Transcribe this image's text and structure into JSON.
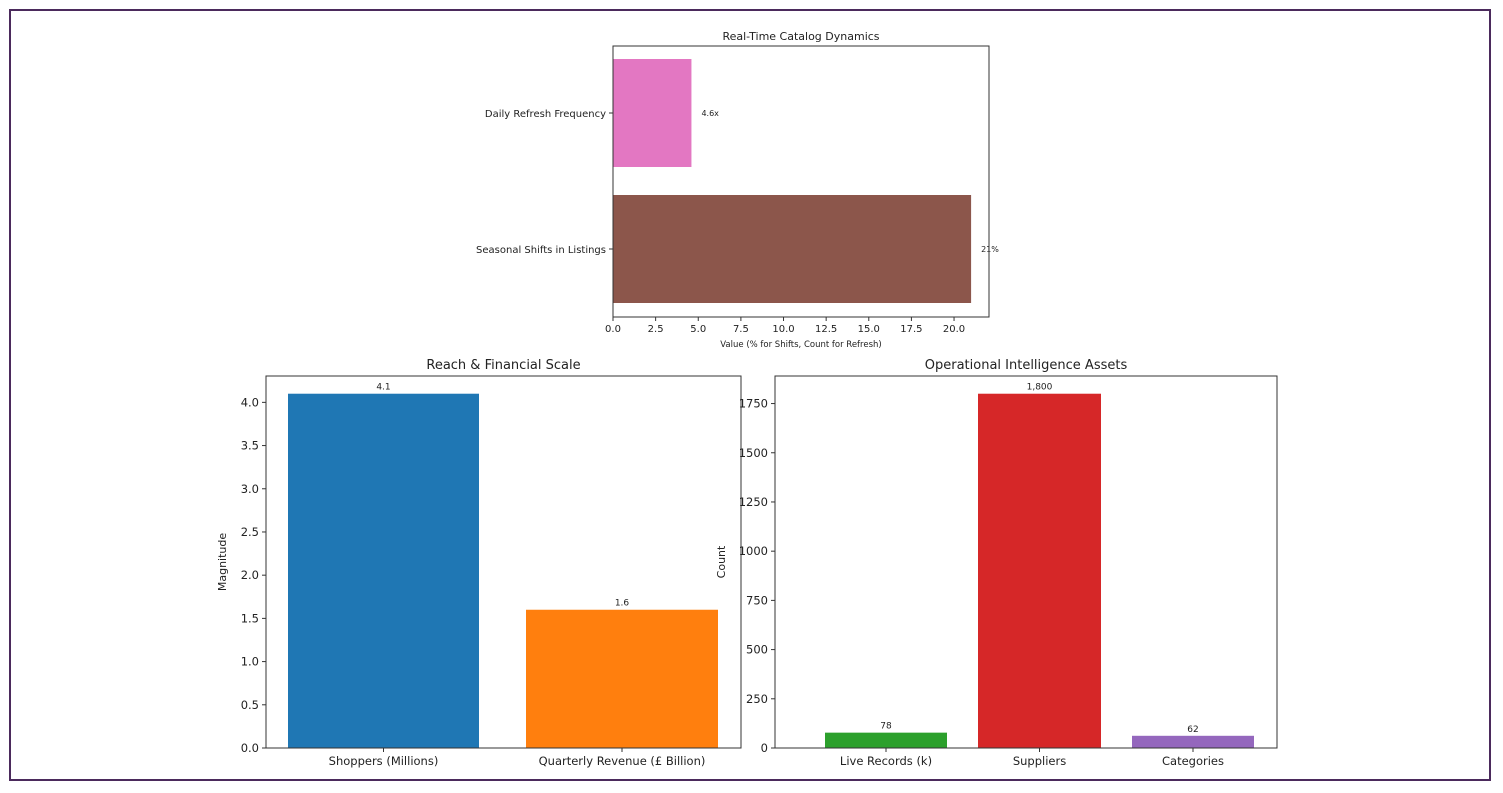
{
  "frame_color": "#4b2a5c",
  "chart_data": [
    {
      "type": "bar",
      "orientation": "horizontal",
      "title": "Real-Time Catalog Dynamics",
      "xlabel": "Value (% for Shifts, Count for Refresh)",
      "ylabel": "",
      "categories": [
        "Daily Refresh Frequency",
        "Seasonal Shifts in Listings"
      ],
      "values": [
        4.6,
        21
      ],
      "data_labels": [
        "4.6x",
        "21%"
      ],
      "colors": [
        "#e377c2",
        "#8c564b"
      ],
      "xlim": [
        0,
        22.05
      ],
      "xticks": [
        0,
        2.5,
        5,
        7.5,
        10,
        12.5,
        15,
        17.5,
        20
      ],
      "xtick_labels": [
        "0.0",
        "2.5",
        "5.0",
        "7.5",
        "10.0",
        "12.5",
        "15.0",
        "17.5",
        "20.0"
      ],
      "grid": false
    },
    {
      "type": "bar",
      "title": "Reach & Financial Scale",
      "xlabel": "",
      "ylabel": "Magnitude",
      "categories": [
        "Shoppers (Millions)",
        "Quarterly Revenue (£ Billion)"
      ],
      "values": [
        4.1,
        1.6
      ],
      "data_labels": [
        "4.1",
        "1.6"
      ],
      "colors": [
        "#1f77b4",
        "#ff7f0e"
      ],
      "ylim": [
        0,
        4.305
      ],
      "yticks": [
        0,
        0.5,
        1,
        1.5,
        2,
        2.5,
        3,
        3.5,
        4
      ],
      "ytick_labels": [
        "0.0",
        "0.5",
        "1.0",
        "1.5",
        "2.0",
        "2.5",
        "3.0",
        "3.5",
        "4.0"
      ],
      "grid": false
    },
    {
      "type": "bar",
      "title": "Operational Intelligence Assets",
      "xlabel": "",
      "ylabel": "Count",
      "categories": [
        "Live Records (k)",
        "Suppliers",
        "Categories"
      ],
      "values": [
        78,
        1800,
        62
      ],
      "data_labels": [
        "78",
        "1,800",
        "62"
      ],
      "colors": [
        "#2ca02c",
        "#d62728",
        "#9467bd"
      ],
      "ylim": [
        0,
        1890
      ],
      "yticks": [
        0,
        250,
        500,
        750,
        1000,
        1250,
        1500,
        1750
      ],
      "ytick_labels": [
        "0",
        "250",
        "500",
        "750",
        "1000",
        "1250",
        "1500",
        "1750"
      ],
      "grid": false
    }
  ]
}
